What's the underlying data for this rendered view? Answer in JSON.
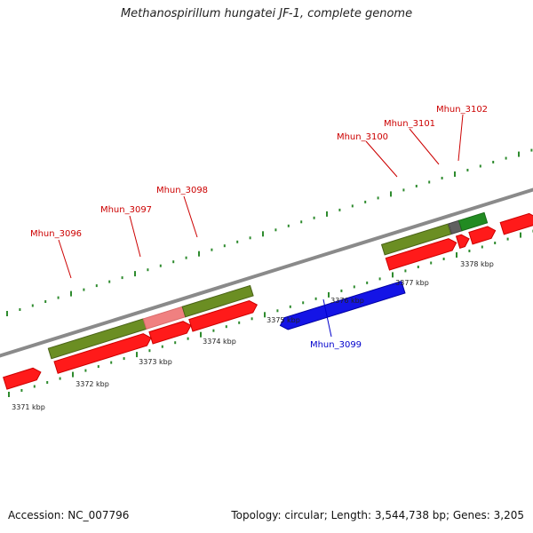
{
  "title": "Methanospirillum hungatei JF-1, complete genome",
  "accession": "Accession: NC_007796",
  "summary": "Topology: circular; Length: 3,544,738 bp; Genes: 3,205",
  "colors": {
    "backbone": "#8a8a8a",
    "tick": "#2e8b2e",
    "red_cds": "#ff1a1a",
    "olive_gene": "#6b8e23",
    "pink_gene": "#f08080",
    "blue_cds": "#1414e6",
    "gray_gene": "#606060",
    "green_gene": "#228b22",
    "label_red": "#cc0000",
    "label_blue": "#0000cc",
    "leader_red": "#cc0000",
    "leader_blue": "#0000cc",
    "scale_text": "#222222"
  },
  "scale_labels": [
    "3371 kbp",
    "3372 kbp",
    "3373 kbp",
    "3374 kbp",
    "3375 kbp",
    "3376 kbp",
    "3377 kbp",
    "3378 kbp"
  ],
  "gene_labels": [
    {
      "id": "Mhun_3096",
      "color": "label_red"
    },
    {
      "id": "Mhun_3097",
      "color": "label_red"
    },
    {
      "id": "Mhun_3098",
      "color": "label_red"
    },
    {
      "id": "Mhun_3100",
      "color": "label_red"
    },
    {
      "id": "Mhun_3101",
      "color": "label_red"
    },
    {
      "id": "Mhun_3102",
      "color": "label_red"
    },
    {
      "id": "Mhun_3099",
      "color": "label_blue"
    }
  ]
}
